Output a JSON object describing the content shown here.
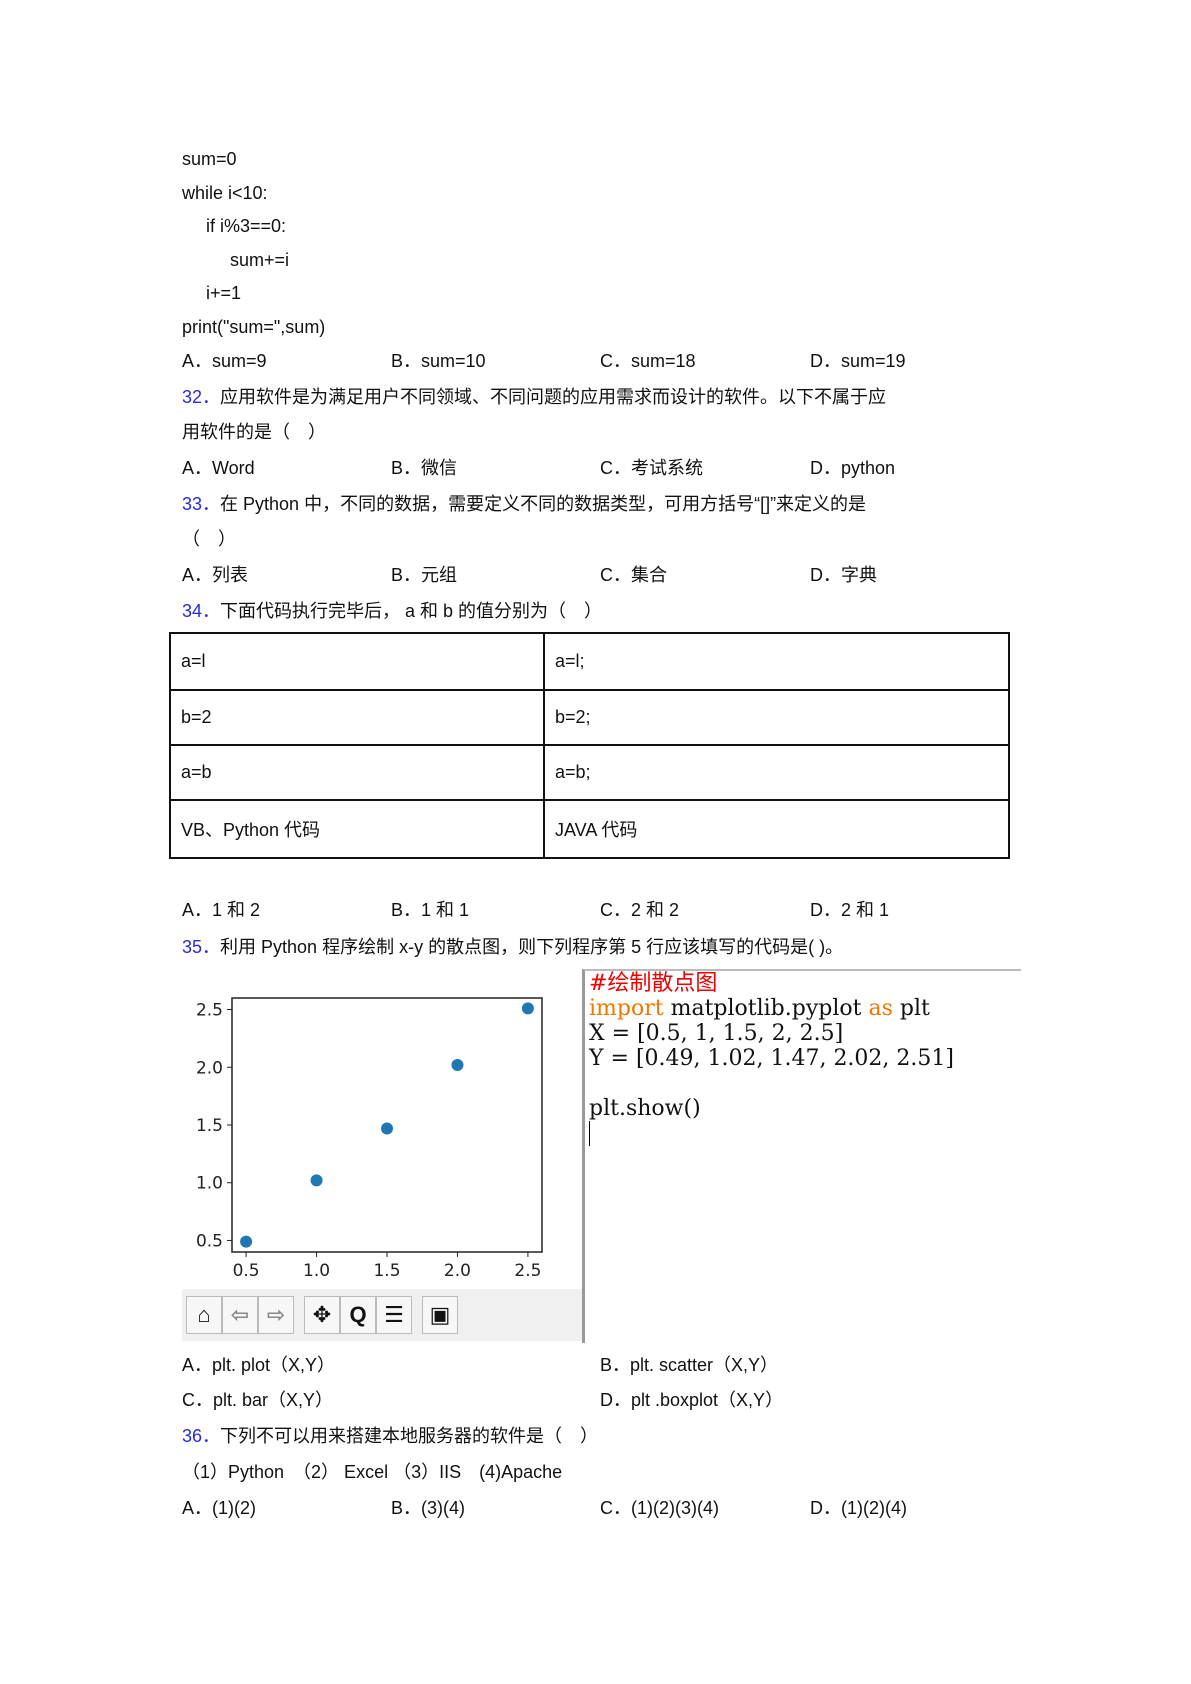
{
  "code_lines": [
    "sum=0",
    "while i<10:",
    "if i%3==0:",
    "sum+=i",
    "i+=1",
    "print(\"sum=\",sum)"
  ],
  "q31_options": [
    "A．sum=9",
    "B．sum=10",
    "C．sum=18",
    "D．sum=19"
  ],
  "q32": {
    "num": "32．",
    "text1": "应用软件是为满足用户不同领域、不同问题的应用需求而设计的软件。以下不属于应",
    "text2": "用软件的是（　）",
    "options": [
      "A．Word",
      "B．微信",
      "C．考试系统",
      "D．python"
    ]
  },
  "q33": {
    "num": "33．",
    "text1": "在 Python 中，不同的数据，需要定义不同的数据类型，可用方括号“[]”来定义的是",
    "text2": "（　）",
    "options": [
      "A．列表",
      "B．元组",
      "C．集合",
      "D．字典"
    ]
  },
  "q34": {
    "num": "34．",
    "text": "下面代码执行完毕后， a 和 b 的值分别为（　）",
    "table": [
      [
        "a=l",
        "a=l;"
      ],
      [
        "b=2",
        "b=2;"
      ],
      [
        "a=b",
        "a=b;"
      ],
      [
        "VB、Python 代码",
        "JAVA 代码"
      ]
    ],
    "options": [
      "A．1 和 2",
      "B．1 和 1",
      "C．2 和 2",
      "D．2 和 1"
    ]
  },
  "q35": {
    "num": "35．",
    "text": "利用 Python 程序绘制 x-y 的散点图，则下列程序第 5 行应该填写的代码是( )。",
    "code": {
      "comment": "#绘制散点图",
      "import_kw": "import",
      "import_rest": " matplotlib.pyplot ",
      "as_kw": "as",
      "alias": " plt",
      "x_line": "X = [0.5, 1, 1.5, 2, 2.5]",
      "y_line": "Y = [0.49, 1.02, 1.47, 2.02, 2.51]",
      "show_line": "plt.show()"
    },
    "options": [
      "A．plt. plot（X,Y）",
      "B．plt. scatter（X,Y）",
      "C．plt. bar（X,Y）",
      "D．plt .boxplot（X,Y）"
    ]
  },
  "q36": {
    "num": "36．",
    "text": "下列不可以用来搭建本地服务器的软件是（　）",
    "items": "（1）Python　（2） Excel （3）IIS　(4)Apache",
    "options": [
      "A．(1)(2)",
      "B．(3)(4)",
      "C．(1)(2)(3)(4)",
      "D．(1)(2)(4)"
    ]
  },
  "toolbar_icons": [
    "home-icon",
    "back-arrow-icon",
    "forward-arrow-icon",
    "pan-icon",
    "zoom-icon",
    "configure-icon",
    "save-icon"
  ],
  "chart_data": {
    "type": "scatter",
    "x": [
      0.5,
      1,
      1.5,
      2,
      2.5
    ],
    "y": [
      0.49,
      1.02,
      1.47,
      2.02,
      2.51
    ],
    "xticks": [
      "0.5",
      "1.0",
      "1.5",
      "2.0",
      "2.5"
    ],
    "yticks": [
      "0.5",
      "1.0",
      "1.5",
      "2.0",
      "2.5"
    ],
    "xlim": [
      0.4,
      2.6
    ],
    "ylim": [
      0.4,
      2.6
    ],
    "color": "#1f77b4",
    "grid": false
  }
}
